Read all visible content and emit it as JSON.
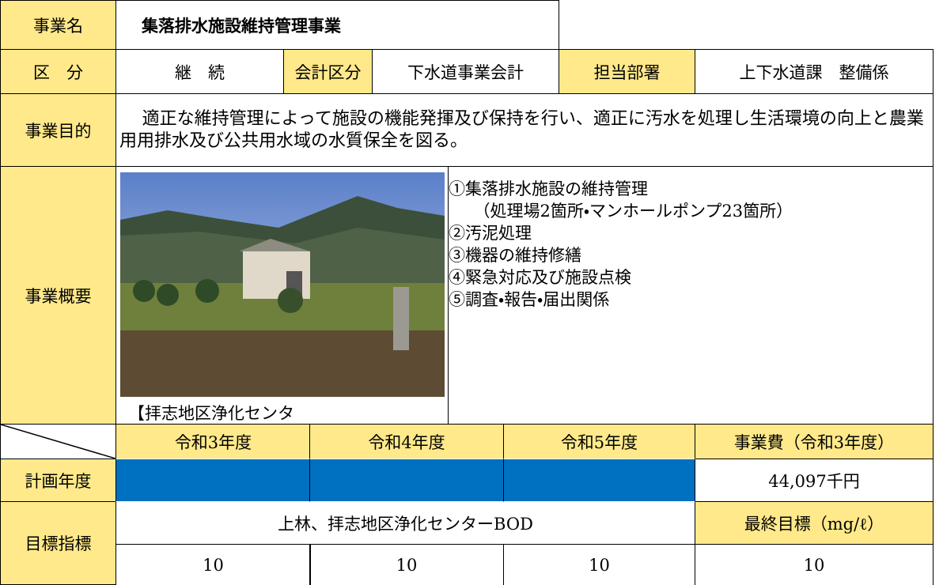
{
  "header": {
    "name_label": "事業名",
    "name": "集落排水施設維持管理事業"
  },
  "info": {
    "category_label": "区　分",
    "category": "継　続",
    "account_label": "会計区分",
    "account": "下水道事業会計",
    "dept_label": "担当部署",
    "dept": "上下水道課　整備係"
  },
  "purpose": {
    "label": "事業目的",
    "text": "適正な維持管理によって施設の機能発揮及び保持を行い、適正に汚水を処理し生活環境の向上と農業用用排水及び公共用水域の水質保全を図る。"
  },
  "overview": {
    "label": "事業概要",
    "photo_caption": "【拝志地区浄化センター】",
    "items": [
      "①集落排水施設の維持管理",
      "（処理場2箇所・マンホールポンプ23箇所）",
      "②汚泥処理",
      "③機器の維持修繕",
      "④緊急対応及び施設点検",
      "⑤調査・報告・届出関係"
    ]
  },
  "schedule": {
    "years": [
      "令和3年度",
      "令和4年度",
      "令和5年度"
    ],
    "cost_label": "事業費（令和3年度）",
    "plan_label": "計画年度",
    "cost": "44,097千円"
  },
  "target": {
    "label": "目標指標",
    "indicator": "上林、拝志地区浄化センターBOD",
    "final_label": "最終目標（mg/ℓ）",
    "values": [
      "10",
      "10",
      "10",
      "10"
    ]
  }
}
